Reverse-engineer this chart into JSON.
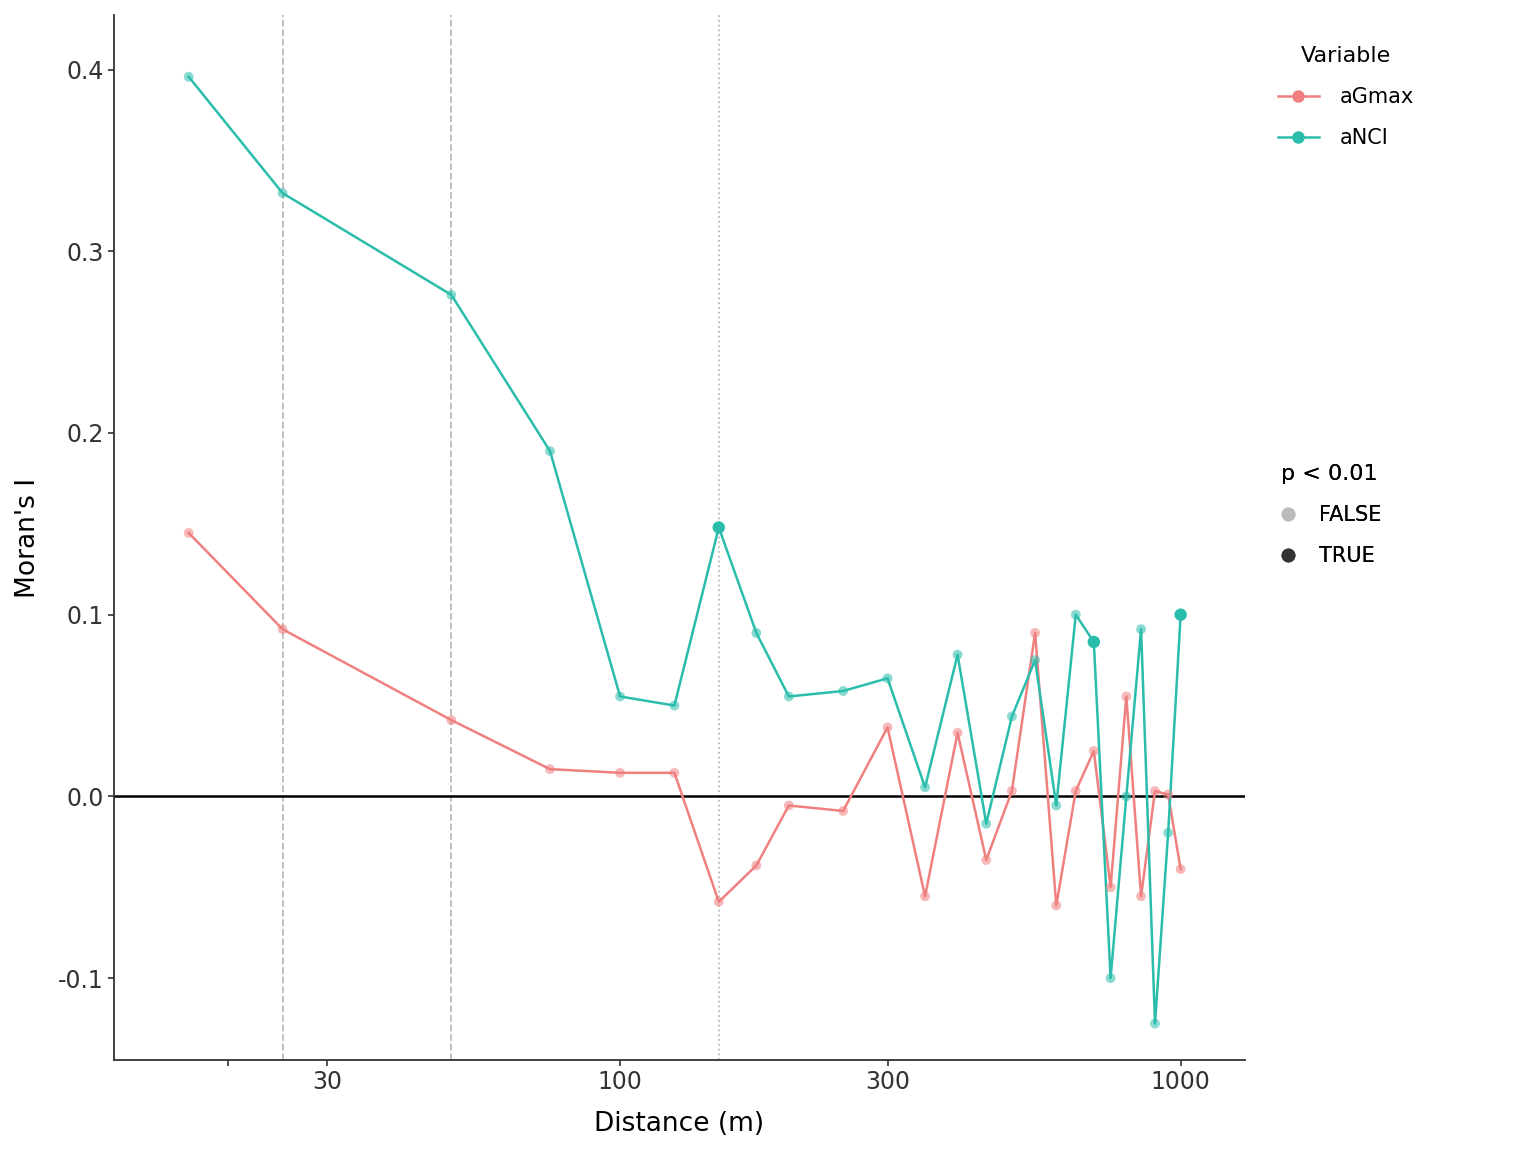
{
  "title": "",
  "xlabel": "Distance (m)",
  "ylabel": "Moran's I",
  "background_color": "#ffffff",
  "color_aGmax": "#F08080",
  "color_aNCI": "#2BBDAC",
  "vlines": [
    {
      "x": 25,
      "style": "--",
      "color": "#bbbbbb"
    },
    {
      "x": 50,
      "style": "--",
      "color": "#bbbbbb"
    },
    {
      "x": 150,
      "style": ":",
      "color": "#bbbbbb"
    }
  ],
  "hline_y": 0.0,
  "xlim": [
    12.5,
    1300
  ],
  "ylim": [
    -0.145,
    0.43
  ],
  "xticks": [
    20,
    30,
    100,
    300,
    1000
  ],
  "xtick_labels": [
    "",
    "30",
    "100",
    "300",
    "1000"
  ],
  "yticks": [
    -0.1,
    0.0,
    0.1,
    0.2,
    0.3,
    0.4
  ],
  "aGmax_x": [
    17,
    25,
    50,
    75,
    100,
    125,
    150,
    175,
    200,
    250,
    300,
    350,
    400,
    450,
    500,
    550,
    600,
    650,
    700,
    750,
    800,
    850,
    900,
    950,
    1000
  ],
  "aGmax_y": [
    0.145,
    0.092,
    0.042,
    0.015,
    0.013,
    0.013,
    -0.058,
    -0.038,
    -0.005,
    -0.008,
    0.038,
    -0.055,
    0.035,
    -0.035,
    0.003,
    0.09,
    -0.06,
    0.003,
    0.025,
    -0.05,
    0.055,
    -0.055,
    0.003,
    0.001,
    -0.04
  ],
  "aGmax_sig": [
    false,
    false,
    false,
    false,
    false,
    false,
    false,
    false,
    false,
    false,
    false,
    false,
    false,
    false,
    false,
    false,
    false,
    false,
    false,
    false,
    false,
    false,
    false,
    false,
    false
  ],
  "aNCI_x": [
    17,
    25,
    50,
    75,
    100,
    125,
    150,
    175,
    200,
    250,
    300,
    350,
    400,
    450,
    500,
    550,
    600,
    650,
    700,
    750,
    800,
    850,
    900,
    950,
    1000
  ],
  "aNCI_y": [
    0.396,
    0.332,
    0.276,
    0.19,
    0.055,
    0.05,
    0.148,
    0.09,
    0.055,
    0.058,
    0.065,
    0.005,
    0.078,
    -0.015,
    0.044,
    0.075,
    -0.005,
    0.1,
    0.085,
    -0.1,
    0.0,
    0.092,
    -0.125,
    -0.02,
    0.1
  ],
  "aNCI_sig": [
    false,
    false,
    false,
    false,
    false,
    false,
    true,
    false,
    false,
    false,
    false,
    false,
    false,
    false,
    false,
    false,
    false,
    false,
    true,
    false,
    false,
    false,
    false,
    false,
    true
  ],
  "legend_var_title": "Variable",
  "legend_sig_title": "p < 0.01",
  "legend_false_color": "#bbbbbb",
  "legend_true_color": "#333333"
}
